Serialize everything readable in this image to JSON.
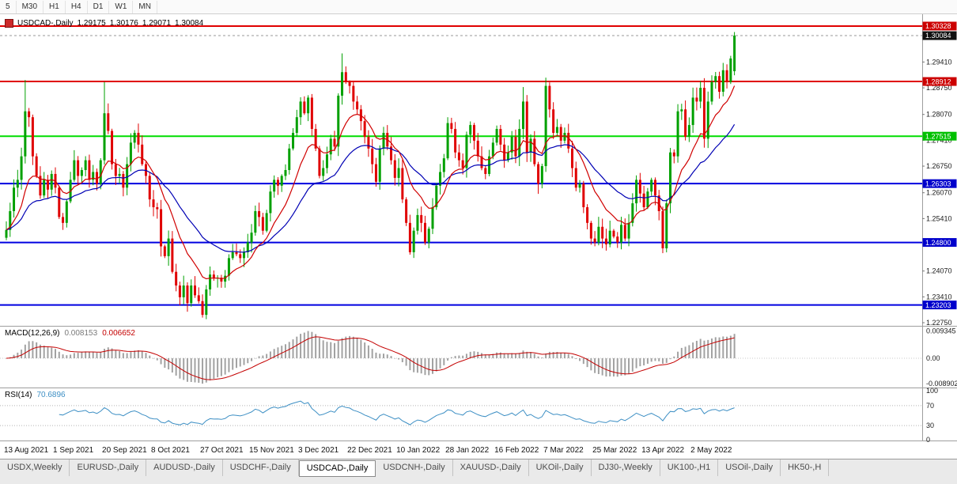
{
  "toolbar": {
    "timeframes": [
      "5",
      "M30",
      "H1",
      "H4",
      "D1",
      "W1",
      "MN"
    ]
  },
  "chart_header": {
    "symbol": "USDCAD-,Daily",
    "open": "1.29175",
    "high": "1.30176",
    "low": "1.29071",
    "close": "1.30084"
  },
  "macd_header": {
    "label": "MACD(12,26,9)",
    "main": "0.008153",
    "signal": "0.006652"
  },
  "rsi_header": {
    "label": "RSI(14)",
    "value": "70.6896"
  },
  "tabs": [
    {
      "label": "USDX,Weekly",
      "active": false
    },
    {
      "label": "EURUSD-,Daily",
      "active": false
    },
    {
      "label": "AUDUSD-,Daily",
      "active": false
    },
    {
      "label": "USDCHF-,Daily",
      "active": false
    },
    {
      "label": "USDCAD-,Daily",
      "active": true
    },
    {
      "label": "USDCNH-,Daily",
      "active": false
    },
    {
      "label": "XAUUSD-,Daily",
      "active": false
    },
    {
      "label": "UKOil-,Daily",
      "active": false
    },
    {
      "label": "DJ30-,Weekly",
      "active": false
    },
    {
      "label": "UK100-,H1",
      "active": false
    },
    {
      "label": "USOil-,Daily",
      "active": false
    },
    {
      "label": "HK50-,H",
      "active": false
    }
  ],
  "chart_data": {
    "type": "candlestick",
    "title": "USDCAD-,Daily",
    "timeframe": "Daily",
    "ylim": [
      1.2269,
      1.3059
    ],
    "colors": {
      "up": "#00A000",
      "down": "#E00000",
      "ma_fast": "#D00000",
      "ma_slow": "#0000B4"
    },
    "moving_averages": [
      {
        "name": "fast",
        "period": 12
      },
      {
        "name": "slow",
        "period": 30
      }
    ],
    "last_candle": {
      "open": 1.29175,
      "high": 1.30176,
      "low": 1.29071,
      "close": 1.30084
    },
    "current_price": {
      "value": 1.30084,
      "label": "1.30084",
      "tag_bg": "#111111"
    },
    "y_ticks": [
      "1.29410",
      "1.28750",
      "1.28070",
      "1.27410",
      "1.26750",
      "1.26070",
      "1.25410",
      "1.24070",
      "1.23410",
      "1.22750"
    ],
    "hlines": [
      {
        "price": 1.30328,
        "label": "1.30328",
        "color": "#E00000",
        "tag_bg": "#CC0000"
      },
      {
        "price": 1.28912,
        "label": "1.28912",
        "color": "#E00000",
        "tag_bg": "#CC0000"
      },
      {
        "price": 1.27515,
        "label": "1.27515",
        "color": "#00DD00",
        "tag_bg": "#00C000"
      },
      {
        "price": 1.26303,
        "label": "1.26303",
        "color": "#0000E0",
        "tag_bg": "#0000CC"
      },
      {
        "price": 1.248,
        "label": "1.24800",
        "color": "#0000E0",
        "tag_bg": "#0000CC"
      },
      {
        "price": 1.23203,
        "label": "1.23203",
        "color": "#0000E0",
        "tag_bg": "#0000CC"
      }
    ],
    "x_label_step": 13,
    "x_labels": [
      "13 Aug 2021",
      "1 Sep 2021",
      "20 Sep 2021",
      "8 Oct 2021",
      "27 Oct 2021",
      "15 Nov 2021",
      "3 Dec 2021",
      "22 Dec 2021",
      "10 Jan 2022",
      "28 Jan 2022",
      "16 Feb 2022",
      "7 Mar 2022",
      "25 Mar 2022",
      "13 Apr 2022",
      "2 May 2022"
    ],
    "closes": [
      1.2512,
      1.256,
      1.262,
      1.264,
      1.27,
      1.2815,
      1.28,
      1.27,
      1.265,
      1.26,
      1.264,
      1.2615,
      1.2655,
      1.262,
      1.2545,
      1.253,
      1.2585,
      1.264,
      1.269,
      1.265,
      1.2665,
      1.269,
      1.264,
      1.266,
      1.263,
      1.269,
      1.281,
      1.2765,
      1.268,
      1.265,
      1.2655,
      1.262,
      1.268,
      1.2735,
      1.276,
      1.273,
      1.268,
      1.265,
      1.259,
      1.257,
      1.2565,
      1.247,
      1.2445,
      1.249,
      1.2405,
      1.237,
      1.234,
      1.237,
      1.2325,
      1.237,
      1.2345,
      1.233,
      1.2295,
      1.236,
      1.2398,
      1.2388,
      1.239,
      1.238,
      1.2395,
      1.244,
      1.2455,
      1.245,
      1.244,
      1.2455,
      1.248,
      1.2505,
      1.256,
      1.2545,
      1.251,
      1.2555,
      1.261,
      1.264,
      1.2625,
      1.265,
      1.2665,
      1.272,
      1.276,
      1.28,
      1.284,
      1.281,
      1.285,
      1.277,
      1.272,
      1.265,
      1.267,
      1.2705,
      1.2745,
      1.2725,
      1.2855,
      1.2915,
      1.289,
      1.288,
      1.284,
      1.282,
      1.279,
      1.275,
      1.272,
      1.268,
      1.2635,
      1.272,
      1.276,
      1.2725,
      1.269,
      1.2645,
      1.267,
      1.259,
      1.253,
      1.2455,
      1.251,
      1.255,
      1.253,
      1.248,
      1.2515,
      1.257,
      1.2625,
      1.266,
      1.2695,
      1.2785,
      1.277,
      1.271,
      1.269,
      1.267,
      1.2755,
      1.278,
      1.274,
      1.27,
      1.267,
      1.2655,
      1.27,
      1.2735,
      1.277,
      1.273,
      1.269,
      1.271,
      1.275,
      1.27,
      1.277,
      1.284,
      1.271,
      1.2745,
      1.268,
      1.263,
      1.2675,
      1.288,
      1.282,
      1.276,
      1.2775,
      1.274,
      1.276,
      1.272,
      1.267,
      1.262,
      1.263,
      1.257,
      1.253,
      1.249,
      1.248,
      1.252,
      1.249,
      1.2475,
      1.251,
      1.2495,
      1.248,
      1.2525,
      1.249,
      1.253,
      1.258,
      1.264,
      1.2605,
      1.257,
      1.261,
      1.264,
      1.26,
      1.256,
      1.2465,
      1.258,
      1.271,
      1.27,
      1.2815,
      1.282,
      1.275,
      1.278,
      1.285,
      1.284,
      1.2875,
      1.2745,
      1.284,
      1.289,
      1.2905,
      1.2865,
      1.292,
      1.289,
      1.295,
      1.30084
    ],
    "wick_overrides": {
      "5": {
        "high": 1.2895
      },
      "26": {
        "high": 1.289
      },
      "52": {
        "low": 1.2288
      },
      "89": {
        "high": 1.2963
      },
      "137": {
        "high": 1.2877
      },
      "143": {
        "high": 1.2901
      }
    },
    "indicators": [
      {
        "type": "macd",
        "params": [
          12,
          26,
          9
        ],
        "last_main": 0.008153,
        "last_signal": 0.006652,
        "ylim": [
          -0.00975,
          0.01055
        ],
        "y_tick_labels": [
          "0.009345",
          "0.00",
          "-0.008902"
        ],
        "colors": {
          "hist": "#A2A2A2",
          "signal": "#C40000"
        }
      },
      {
        "type": "rsi",
        "period": 14,
        "last_value": 70.6896,
        "ylim": [
          0,
          100
        ],
        "levels": [
          70,
          30
        ],
        "y_tick_labels": [
          "100",
          "70",
          "30",
          "0"
        ],
        "color": "#3D8FC4"
      }
    ]
  }
}
